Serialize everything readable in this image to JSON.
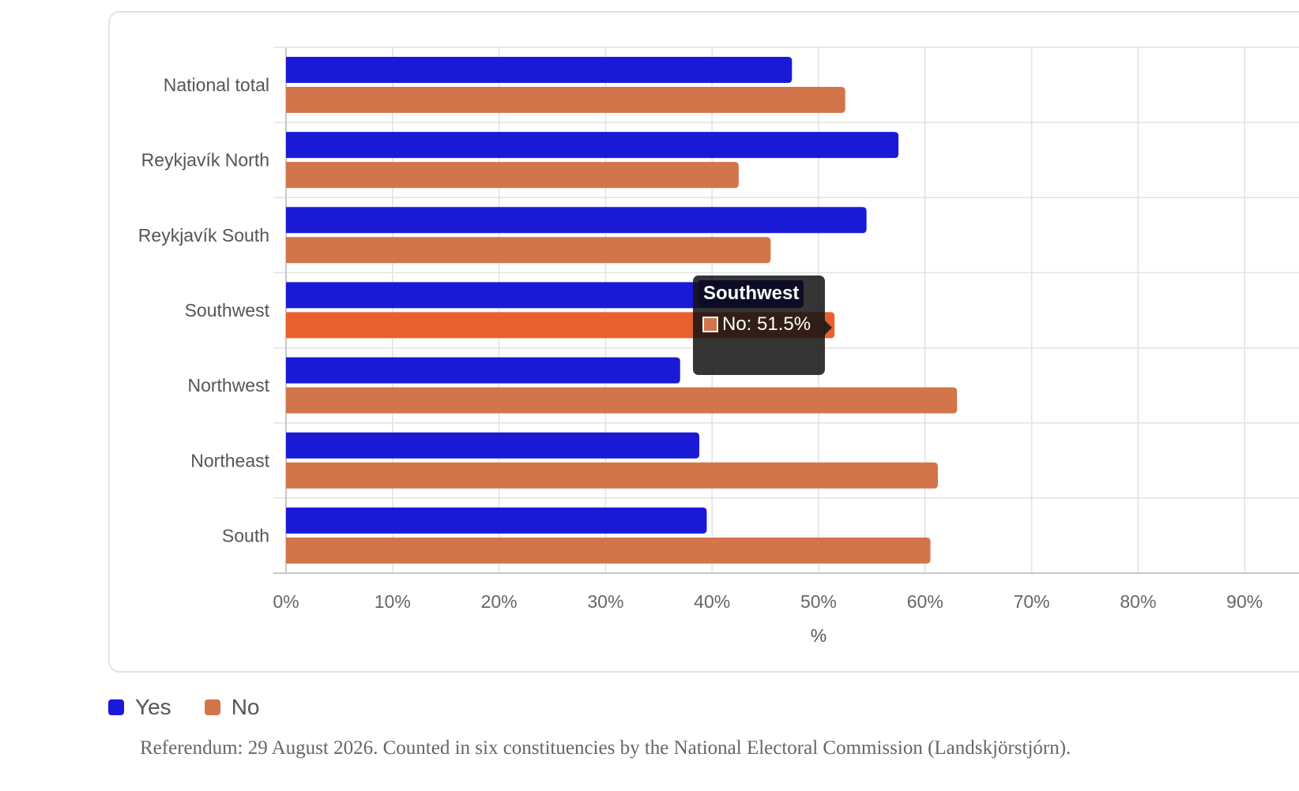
{
  "chart_data": {
    "type": "bar",
    "orientation": "horizontal",
    "categories": [
      "National total",
      "Reykjavík North",
      "Reykjavík South",
      "Southwest",
      "Northwest",
      "Northeast",
      "South"
    ],
    "series": [
      {
        "name": "Yes",
        "color": "#1a1ad6",
        "values": [
          47.5,
          57.5,
          54.5,
          48.5,
          37.0,
          38.8,
          39.5
        ]
      },
      {
        "name": "No",
        "color": "#d2754a",
        "values": [
          52.5,
          42.5,
          45.5,
          51.5,
          63.0,
          61.2,
          60.5
        ]
      }
    ],
    "highlight": {
      "category": "Southwest",
      "series": "No",
      "color": "#e8602e"
    },
    "xlim": [
      0,
      90
    ],
    "xticks": [
      0,
      10,
      20,
      30,
      40,
      50,
      60,
      70,
      80,
      90
    ],
    "tick_suffix": "%",
    "xlabel": "%",
    "ylabel": "",
    "grid": true,
    "legend": "bottom-left"
  },
  "tooltip": {
    "title": "Southwest",
    "text": "No: 51.5%",
    "swatch_color": "#d2754a"
  },
  "legend": {
    "items": [
      {
        "label": "Yes",
        "color": "#1a1ad6"
      },
      {
        "label": "No",
        "color": "#d2754a"
      }
    ]
  },
  "note": "Referendum: 29 August 2026. Counted in six constituencies by the National Electoral Commission (Landskjörstjórn)."
}
